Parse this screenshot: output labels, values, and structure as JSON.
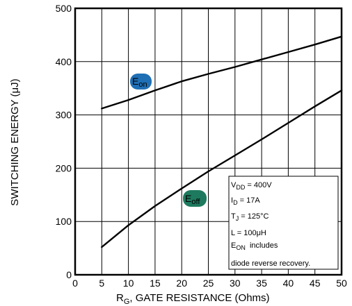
{
  "chart_data": {
    "type": "line",
    "xlabel": {
      "main": "R",
      "sub": "G",
      "rest": ", GATE RESISTANCE (Ohms)"
    },
    "ylabel": "SWITCHING ENERGY (μJ)",
    "xlim": [
      0,
      50
    ],
    "ylim": [
      0,
      500
    ],
    "x_ticks": [
      0,
      5,
      10,
      15,
      20,
      25,
      30,
      35,
      40,
      45,
      50
    ],
    "y_ticks": [
      0,
      100,
      200,
      300,
      400,
      500
    ],
    "grid": true,
    "series": [
      {
        "name": "E_on",
        "tag": {
          "main": "E",
          "sub": "on"
        },
        "color": "#1f6fb5",
        "x": [
          5,
          10,
          15,
          20,
          25,
          30,
          35,
          40,
          45,
          50
        ],
        "y": [
          312,
          328,
          346,
          363,
          377,
          390,
          404,
          418,
          432,
          447
        ]
      },
      {
        "name": "E_off",
        "tag": {
          "main": "E",
          "sub": "off"
        },
        "color": "#1e7a5e",
        "x": [
          5,
          10,
          15,
          20,
          25,
          30,
          35,
          40,
          45,
          50
        ],
        "y": [
          52,
          93,
          129,
          162,
          194,
          224,
          254,
          285,
          316,
          346
        ]
      }
    ],
    "conditions": [
      {
        "main": "V",
        "sub": "DD",
        "rest": " = 400V"
      },
      {
        "main": "I",
        "sub": "D",
        "rest": " = 17A"
      },
      {
        "main": "T",
        "sub": "J",
        "rest": " = 125°C"
      },
      {
        "main": "L = 100μH",
        "sub": "",
        "rest": ""
      },
      {
        "main": "E",
        "sub": "ON",
        "rest": "  includes"
      },
      {
        "main": "diode reverse recovery.",
        "sub": "",
        "rest": ""
      }
    ]
  }
}
